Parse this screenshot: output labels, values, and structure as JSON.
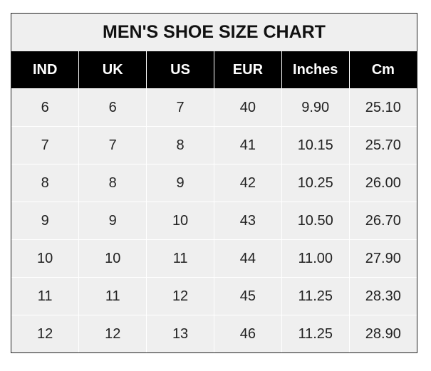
{
  "title": "MEN'S SHOE SIZE CHART",
  "columns": [
    "IND",
    "UK",
    "US",
    "EUR",
    "Inches",
    "Cm"
  ],
  "rows": [
    [
      "6",
      "6",
      "7",
      "40",
      "9.90",
      "25.10"
    ],
    [
      "7",
      "7",
      "8",
      "41",
      "10.15",
      "25.70"
    ],
    [
      "8",
      "8",
      "9",
      "42",
      "10.25",
      "26.00"
    ],
    [
      "9",
      "9",
      "10",
      "43",
      "10.50",
      "26.70"
    ],
    [
      "10",
      "10",
      "11",
      "44",
      "11.00",
      "27.90"
    ],
    [
      "11",
      "11",
      "12",
      "45",
      "11.25",
      "28.30"
    ],
    [
      "12",
      "12",
      "13",
      "46",
      "11.25",
      "28.90"
    ]
  ],
  "colors": {
    "header_bg": "#000000",
    "header_text": "#ffffff",
    "cell_bg": "#efefef",
    "grid": "#ffffff"
  }
}
